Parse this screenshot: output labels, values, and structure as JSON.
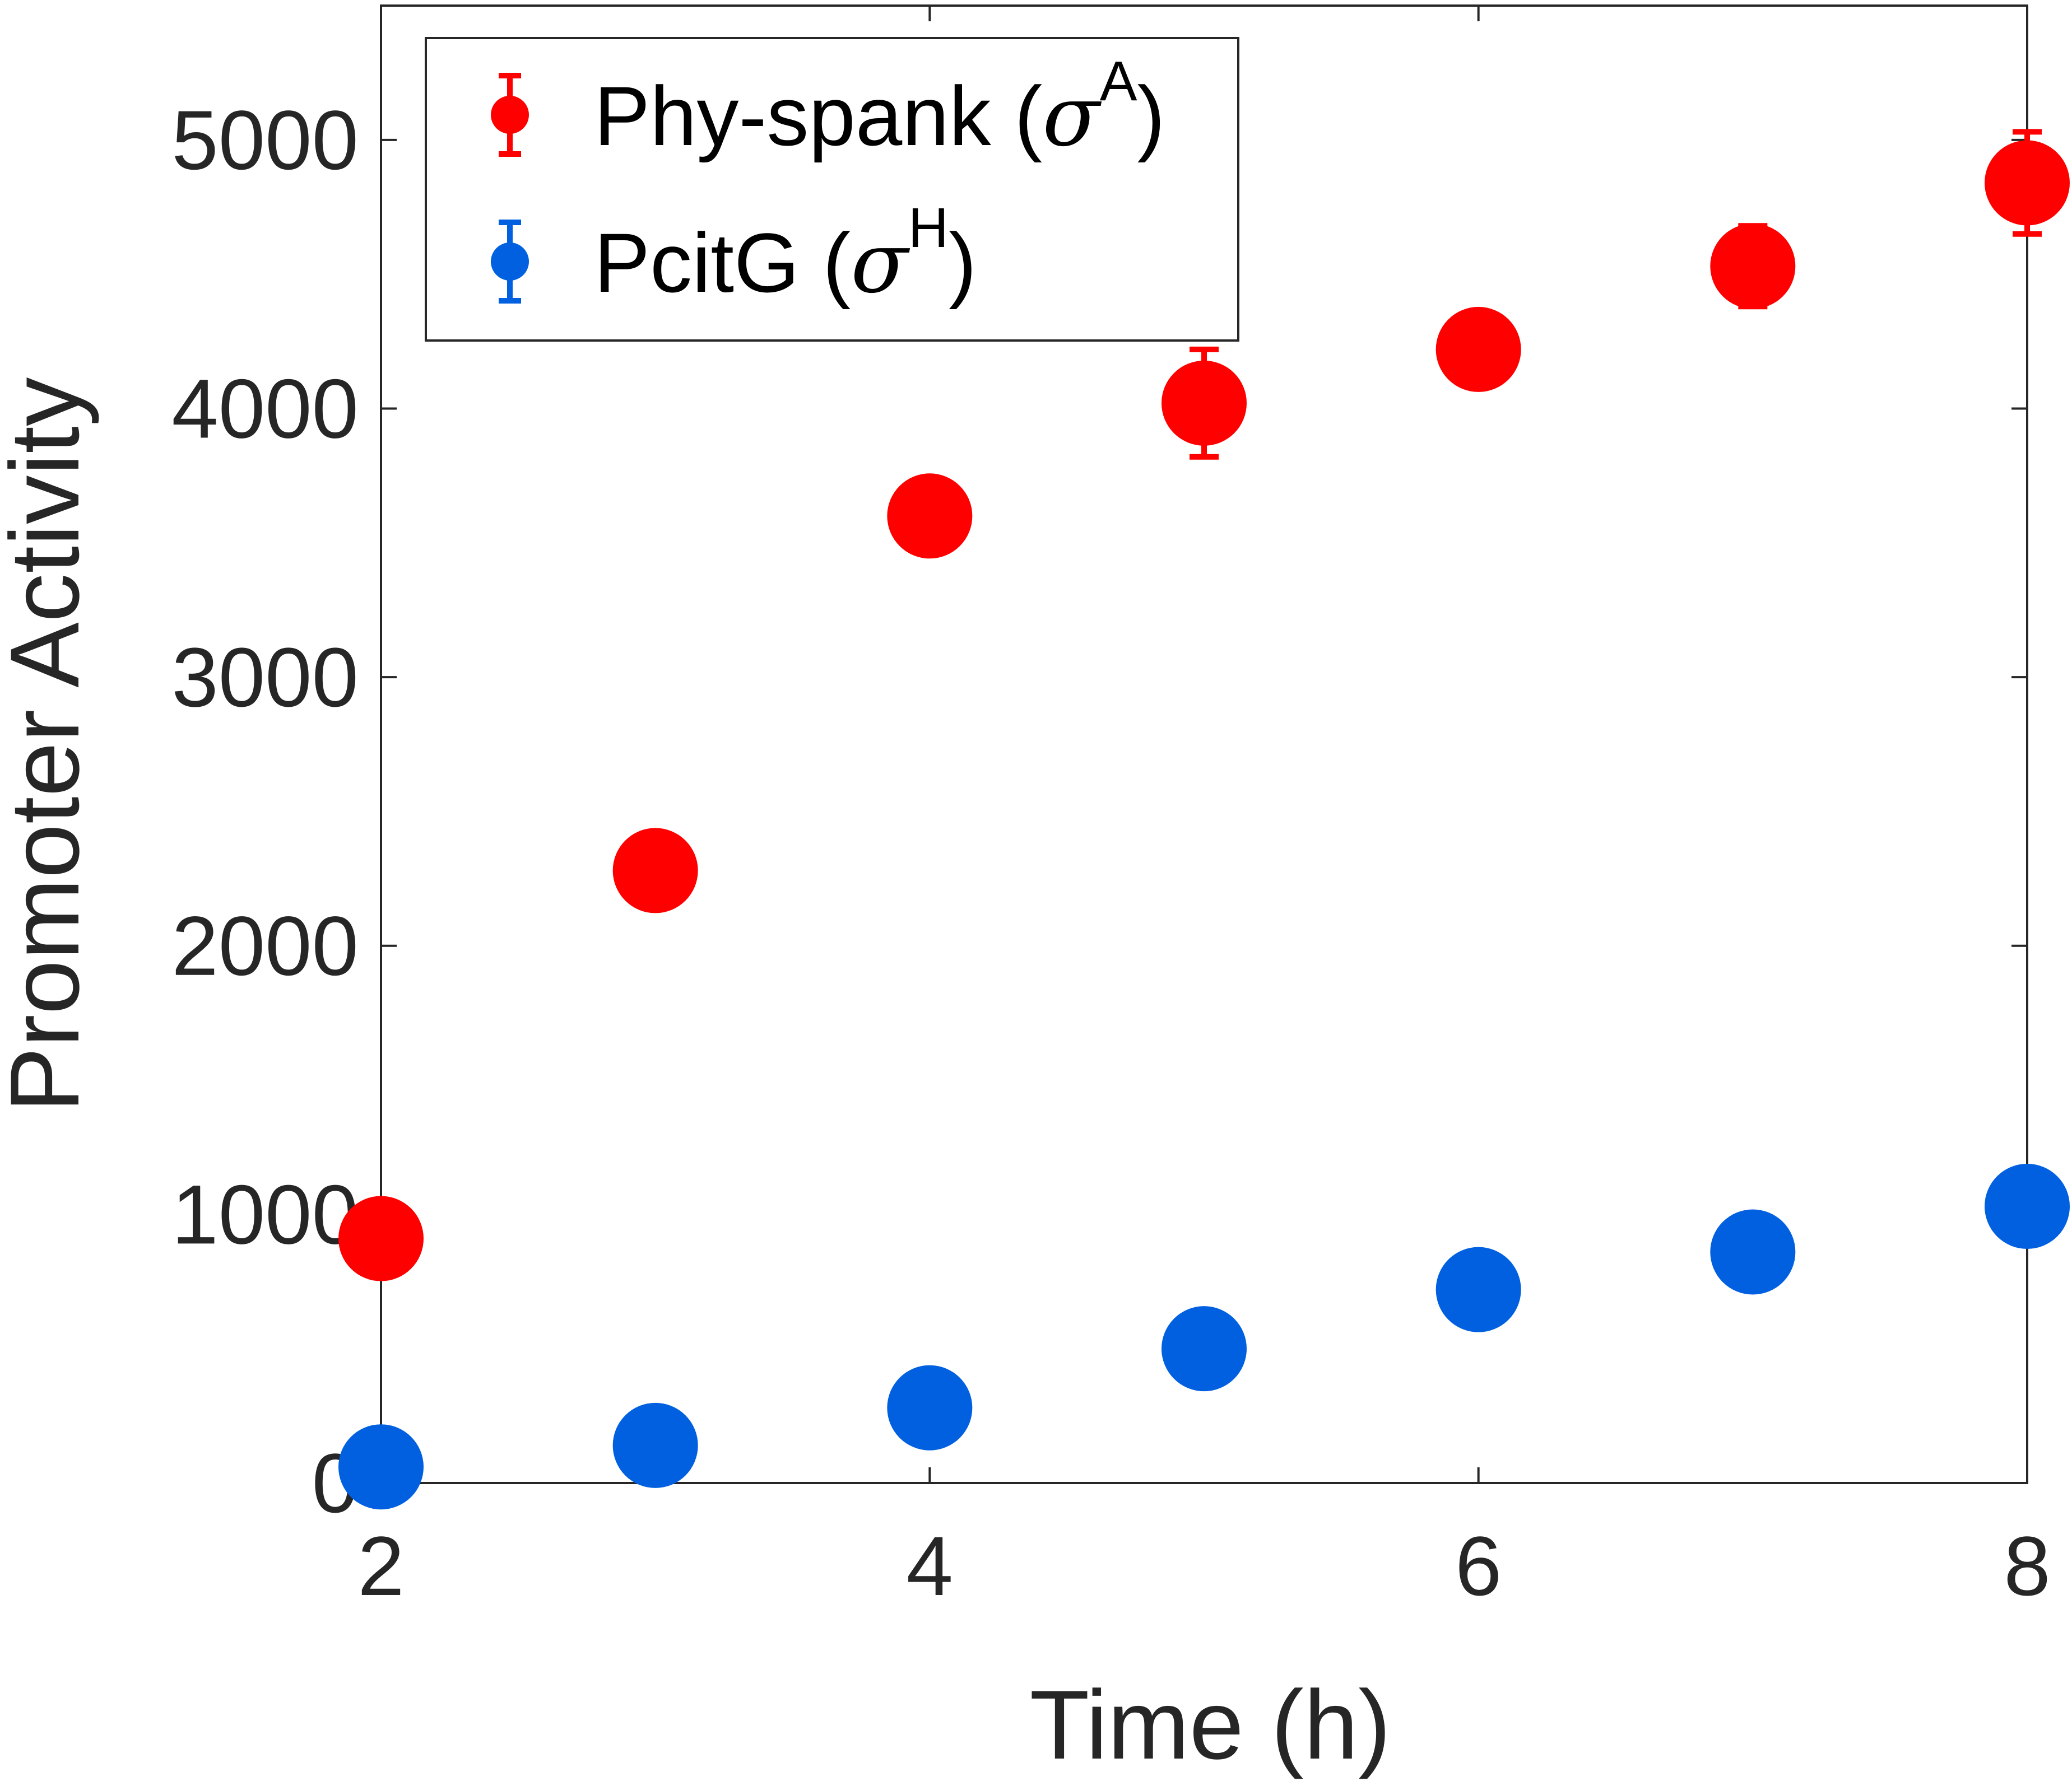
{
  "chart_data": {
    "type": "scatter",
    "xlabel": "Time (h)",
    "ylabel": "Promoter Activity",
    "xlim": [
      2,
      8
    ],
    "ylim": [
      0,
      5500
    ],
    "xticks": [
      "2",
      "4",
      "6",
      "8"
    ],
    "yticks": [
      "0",
      "1000",
      "2000",
      "3000",
      "4000",
      "5000"
    ],
    "grid": false,
    "legend_position": "top-left",
    "series": [
      {
        "name": "Phy-spank (σA)",
        "legend_base": "Phy-spank (",
        "legend_sym": "σ",
        "legend_sup": "A",
        "legend_close": ")",
        "color": "#ff0000",
        "x": [
          2,
          3,
          4,
          5,
          6,
          7,
          8
        ],
        "y": [
          910,
          2280,
          3600,
          4020,
          4220,
          4530,
          4840
        ],
        "err": [
          0,
          0,
          0,
          200,
          0,
          150,
          190
        ]
      },
      {
        "name": "PcitG (σH)",
        "legend_base": "PcitG (",
        "legend_sym": "σ",
        "legend_sup": "H",
        "legend_close": ")",
        "color": "#0060e0",
        "x": [
          2,
          3,
          4,
          5,
          6,
          7,
          8
        ],
        "y": [
          60,
          140,
          280,
          500,
          720,
          860,
          1030
        ],
        "err": [
          0,
          0,
          0,
          0,
          0,
          0,
          0
        ]
      }
    ]
  }
}
